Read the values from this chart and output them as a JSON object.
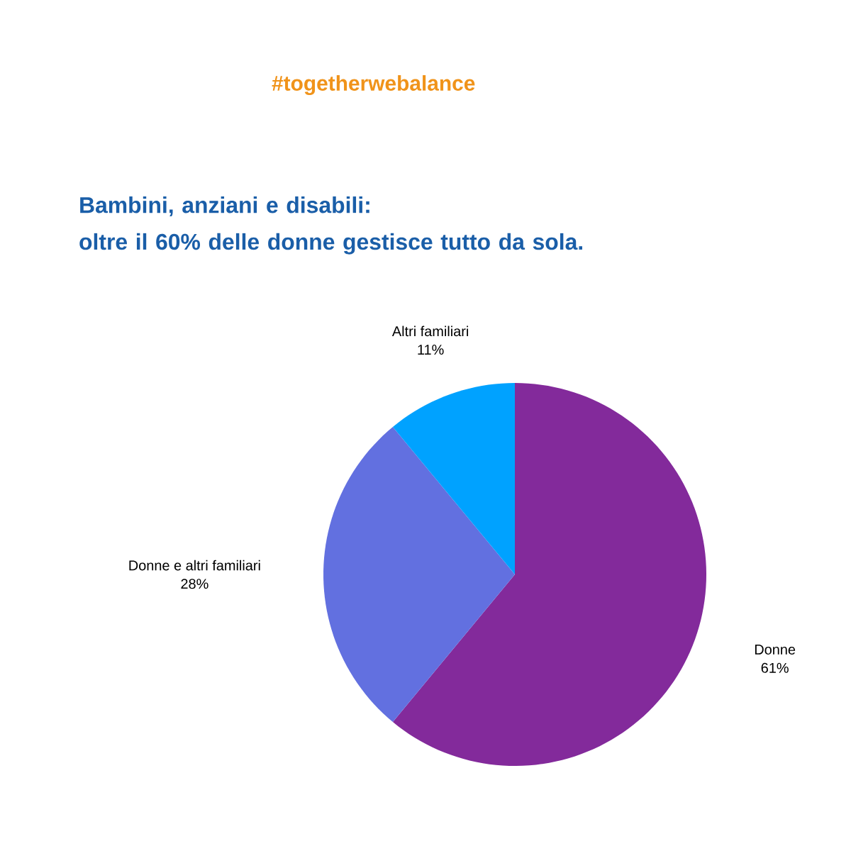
{
  "chart_data": {
    "type": "pie",
    "title": "Bambini, anziani e disabili:\noltre il 60% delle donne gestisce tutto da sola.",
    "subtitle": "#togetherwebalance",
    "categories": [
      "Donne",
      "Donne e altri familiari",
      "Altri familiari"
    ],
    "values": [
      61,
      28,
      11
    ],
    "value_labels": [
      "61%",
      "28%",
      "11%"
    ],
    "colors": [
      "#832a9b",
      "#6270e0",
      "#00a2ff"
    ]
  }
}
